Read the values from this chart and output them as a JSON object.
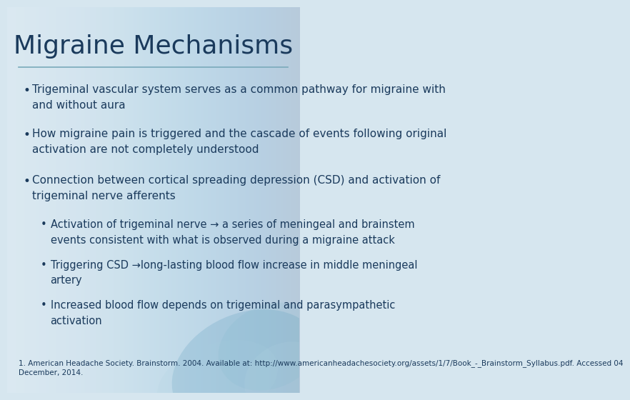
{
  "title": "Migraine Mechanisms",
  "title_color": "#1a3a5c",
  "title_fontsize": 26,
  "bg_color": "#d6e6ef",
  "text_color": "#1a3a5c",
  "line_color": "#7aaabb",
  "body_fontsize": 11,
  "footnote_fontsize": 7.5,
  "bullet1": "Trigeminal vascular system serves as a common pathway for migraine with\nand without aura",
  "bullet2": "How migraine pain is triggered and the cascade of events following original\nactivation are not completely understood",
  "bullet3": "Connection between cortical spreading depression (CSD) and activation of\ntrigeminal nerve afferents",
  "sub_bullet1": "Activation of trigeminal nerve → a series of meningeal and brainstem\nevents consistent with what is observed during a migraine attack",
  "sub_bullet2": "Triggering CSD →long-lasting blood flow increase in middle meningeal\nartery",
  "sub_bullet3": "Increased blood flow depends on trigeminal and parasympathetic\nactivation",
  "footnote": "1. American Headache Society. Brainstorm. 2004. Available at: http://www.americanheadachesociety.org/assets/1/7/Book_-_Brainstorm_Syllabus.pdf. Accessed 04\nDecember, 2014."
}
